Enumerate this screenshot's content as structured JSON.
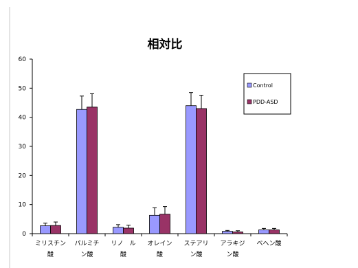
{
  "chart_data": {
    "type": "bar",
    "title": "相対比",
    "xlabel": "",
    "ylabel": "",
    "ylim": [
      0,
      60
    ],
    "yticks": [
      "0",
      "10",
      "20",
      "30",
      "40",
      "50",
      "60"
    ],
    "categories": [
      [
        "ミリスチン",
        "酸"
      ],
      [
        "パルミチ",
        "ン酸"
      ],
      [
        "リノ　ル",
        "酸"
      ],
      [
        "オレイン",
        "酸"
      ],
      [
        "ステアリ",
        "ン酸"
      ],
      [
        "アラキジ",
        "ン酸"
      ],
      [
        "ベヘン酸",
        ""
      ]
    ],
    "series": [
      {
        "name": "Control",
        "color": "#9999ff",
        "values": [
          2.7,
          42.7,
          2.2,
          6.3,
          44.0,
          0.8,
          1.3
        ],
        "errors": [
          0.9,
          4.6,
          0.9,
          2.6,
          4.5,
          0.3,
          0.5
        ]
      },
      {
        "name": "PDD-ASD",
        "color": "#993366",
        "values": [
          2.8,
          43.5,
          1.9,
          6.7,
          43.0,
          0.6,
          1.3
        ],
        "errors": [
          1.2,
          4.6,
          1.0,
          2.6,
          4.6,
          0.4,
          0.5
        ]
      }
    ],
    "legend_position": "top-right",
    "grid": false
  }
}
